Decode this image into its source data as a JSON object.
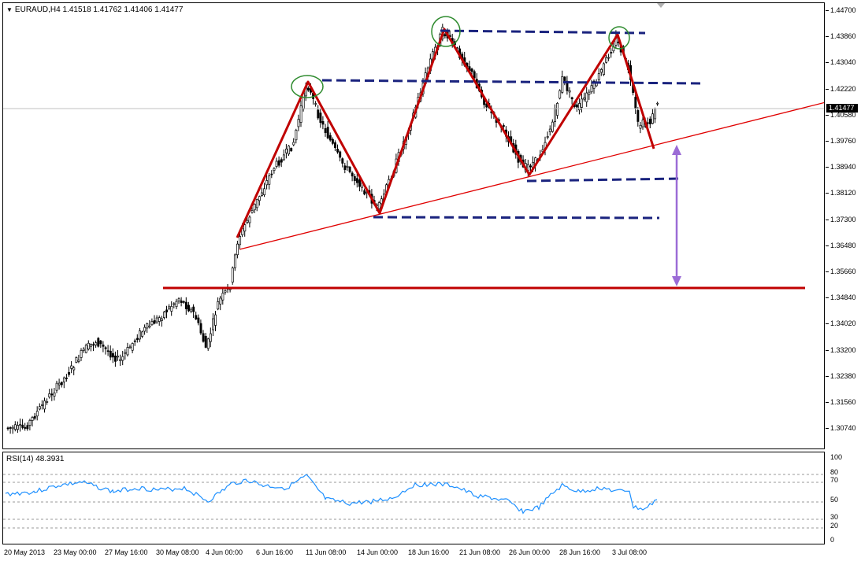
{
  "price_panel": {
    "symbol_line": "EURAUD,H4  1.41518 1.41762 1.41406 1.41477",
    "current_price": "1.41477",
    "price_labels": [
      "1.44700",
      "1.43860",
      "1.43040",
      "1.42220",
      "1.40580",
      "1.39760",
      "1.38940",
      "1.38120",
      "1.37300",
      "1.36480",
      "1.35660",
      "1.34840",
      "1.34020",
      "1.33200",
      "1.32380",
      "1.31560",
      "1.30740"
    ]
  },
  "rsi_panel": {
    "title": "RSI(14) 48.3931",
    "levels": [
      "100",
      "80",
      "70",
      "50",
      "30",
      "20",
      "0"
    ]
  },
  "time_axis": {
    "labels": [
      "20 May 2013",
      "23 May 00:00",
      "27 May 16:00",
      "30 May 08:00",
      "4 Jun 00:00",
      "6 Jun 16:00",
      "11 Jun 08:00",
      "14 Jun 00:00",
      "18 Jun 16:00",
      "21 Jun 08:00",
      "26 Jun 00:00",
      "28 Jun 16:00",
      "3 Jul 08:00"
    ]
  },
  "colors": {
    "candle": "#000000",
    "pattern_line": "#c00000",
    "trendline": "#e00000",
    "dashed_level": "#1a237e",
    "circle": "#2e8b2e",
    "arrow": "#9b6bd6",
    "rsi_line": "#1e90ff",
    "rsi_grid": "#9a9a9a"
  }
}
